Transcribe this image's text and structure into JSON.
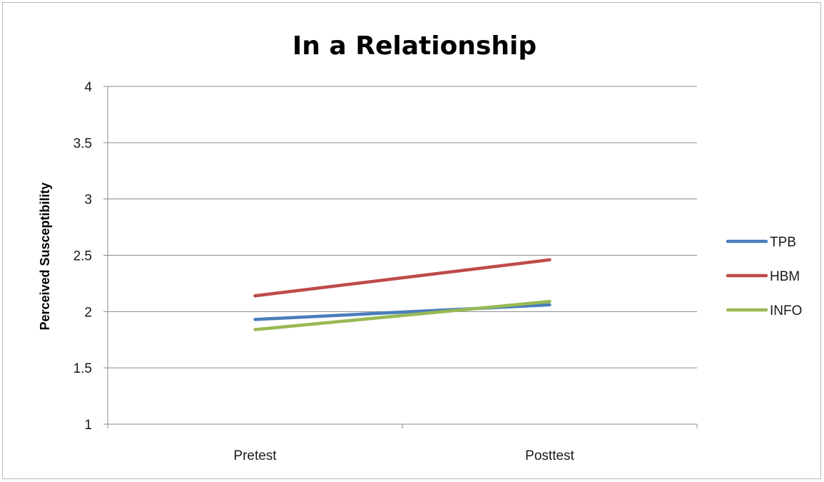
{
  "chart_data": {
    "type": "line",
    "title": "In a Relationship",
    "xlabel": "",
    "ylabel": "Perceived Susceptibility",
    "categories": [
      "Pretest",
      "Posttest"
    ],
    "ylim": [
      1,
      4
    ],
    "yticks": [
      "1",
      "1.5",
      "2",
      "2.5",
      "3",
      "3.5",
      "4"
    ],
    "grid": true,
    "legend_position": "right",
    "series": [
      {
        "name": "TPB",
        "color": "#4a7ebb",
        "values": [
          1.93,
          2.06
        ]
      },
      {
        "name": "HBM",
        "color": "#be4b48",
        "values": [
          2.14,
          2.46
        ]
      },
      {
        "name": "INFO",
        "color": "#98b954",
        "values": [
          1.84,
          2.09
        ]
      }
    ]
  }
}
